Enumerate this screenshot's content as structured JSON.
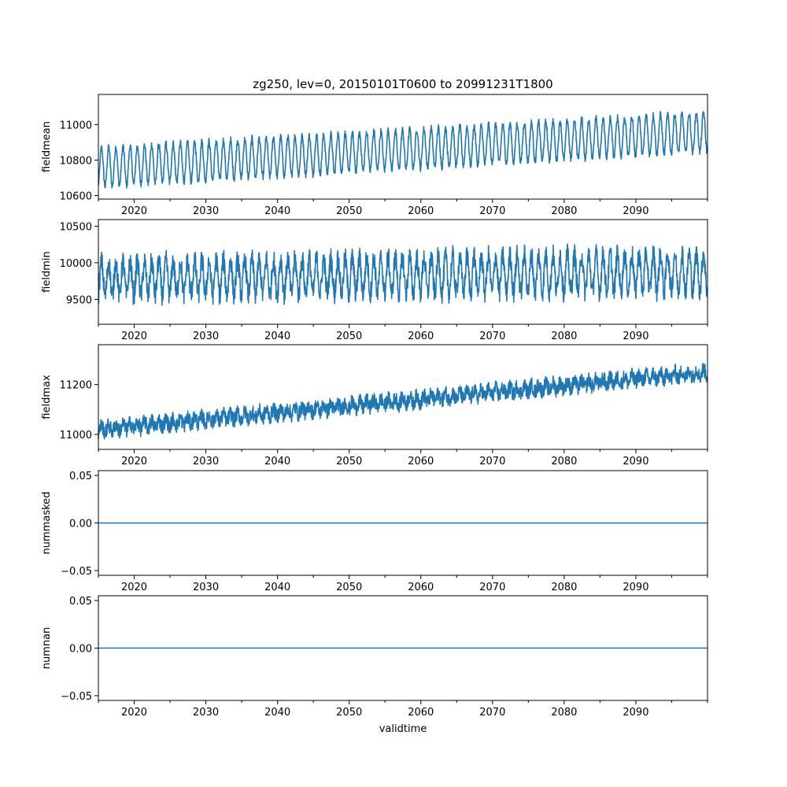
{
  "chart_data": {
    "type": "line",
    "title": "zg250, lev=0, 20150101T0600 to 20991231T1800",
    "xlabel": "validtime",
    "xlim": [
      2015.0,
      2100.0
    ],
    "xticks": [
      2020,
      2030,
      2040,
      2050,
      2060,
      2070,
      2080,
      2090
    ],
    "xtick_labels": [
      "2020",
      "2030",
      "2040",
      "2050",
      "2060",
      "2070",
      "2080",
      "2090"
    ],
    "x_minor_ticks": [
      2015,
      2025,
      2035,
      2045,
      2055,
      2065,
      2075,
      2085,
      2095,
      2100
    ],
    "color": "#1f77b4",
    "panels": [
      {
        "name": "fieldmean",
        "ylabel": "fieldmean",
        "ylim": [
          10580,
          11170
        ],
        "yticks": [
          10600,
          10800,
          11000
        ],
        "ytick_labels": [
          "10600",
          "10800",
          "11000"
        ],
        "trend_start": 10760,
        "trend_end": 10960,
        "amp_start": 110,
        "amp_end": 110,
        "seasonal": true,
        "noise": 20
      },
      {
        "name": "fieldmin",
        "ylabel": "fieldmin",
        "ylim": [
          9160,
          10590
        ],
        "yticks": [
          9500,
          10000,
          10500
        ],
        "ytick_labels": [
          "9500",
          "10000",
          "10500"
        ],
        "trend_start": 9780,
        "trend_end": 9880,
        "amp_start": 230,
        "amp_end": 260,
        "seasonal": true,
        "noise": 150
      },
      {
        "name": "fieldmax",
        "ylabel": "fieldmax",
        "ylim": [
          10940,
          11360
        ],
        "yticks": [
          11000,
          11200
        ],
        "ytick_labels": [
          "11000",
          "11200"
        ],
        "trend_start": 11020,
        "trend_end": 11250,
        "amp_start": 15,
        "amp_end": 15,
        "seasonal": true,
        "noise": 30
      },
      {
        "name": "nummasked",
        "ylabel": "nummasked",
        "ylim": [
          -0.055,
          0.055
        ],
        "yticks": [
          -0.05,
          0.0,
          0.05
        ],
        "ytick_labels": [
          "−0.05",
          "0.00",
          "0.05"
        ],
        "constant": 0.0
      },
      {
        "name": "numnan",
        "ylabel": "numnan",
        "ylim": [
          -0.055,
          0.055
        ],
        "yticks": [
          -0.05,
          0.0,
          0.05
        ],
        "ytick_labels": [
          "−0.05",
          "0.00",
          "0.05"
        ],
        "constant": 0.0
      }
    ]
  }
}
